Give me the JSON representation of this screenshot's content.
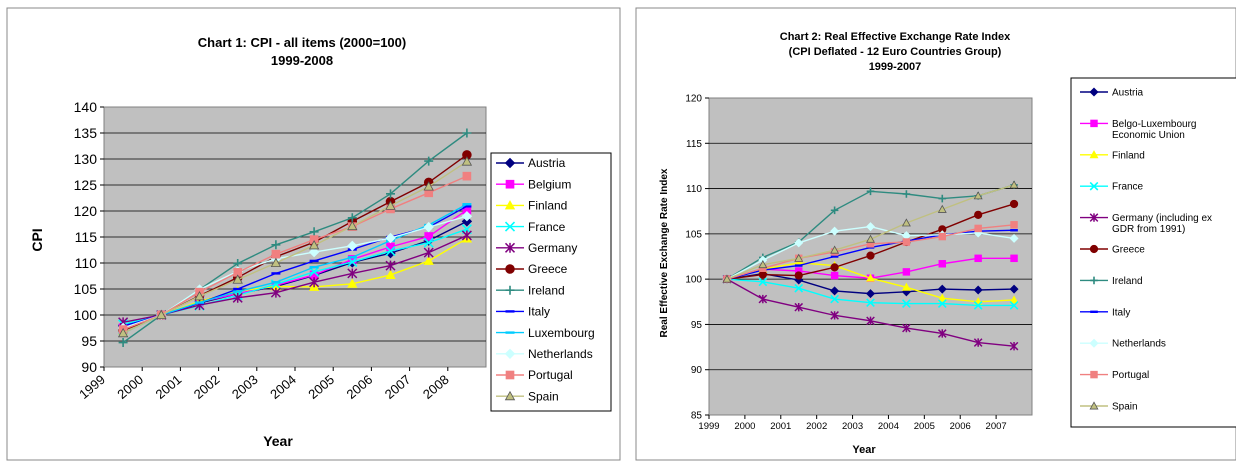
{
  "chart_data": [
    {
      "type": "line",
      "title": "Chart 1:  CPI - all items (2000=100)",
      "subtitle": "1999-2008",
      "xlabel": "Year",
      "ylabel": "CPI",
      "categories": [
        "1999",
        "2000",
        "2001",
        "2002",
        "2003",
        "2004",
        "2005",
        "2006",
        "2007",
        "2008"
      ],
      "ylim": [
        90,
        140
      ],
      "yticks": [
        "90",
        "95",
        "100",
        "105",
        "110",
        "115",
        "120",
        "125",
        "130",
        "135",
        "140"
      ],
      "grid": "horizontal",
      "legend": "right",
      "series": [
        {
          "name": "Austria",
          "color": "#000080",
          "marker": "diamond",
          "values": [
            98.0,
            100,
            102.3,
            104.1,
            105.5,
            107.6,
            110.1,
            111.9,
            114.3,
            118.0
          ]
        },
        {
          "name": "Belgium",
          "color": "#ff00ff",
          "marker": "square",
          "values": [
            97.5,
            100,
            102.5,
            104.1,
            105.7,
            107.7,
            110.7,
            113.1,
            115.1,
            120.2
          ]
        },
        {
          "name": "Finland",
          "color": "#ffff00",
          "marker": "triangle",
          "values": [
            97.0,
            100,
            102.6,
            104.6,
            105.5,
            105.4,
            106.0,
            107.7,
            110.4,
            114.7
          ]
        },
        {
          "name": "France",
          "color": "#00ffff",
          "marker": "x",
          "values": [
            98.2,
            100,
            101.8,
            103.8,
            105.9,
            108.3,
            110.2,
            112.3,
            113.9,
            116.5
          ]
        },
        {
          "name": "Germany",
          "color": "#800080",
          "marker": "star",
          "values": [
            98.6,
            100,
            101.9,
            103.3,
            104.3,
            106.3,
            108.0,
            109.5,
            112.0,
            115.3
          ]
        },
        {
          "name": "Greece",
          "color": "#800000",
          "marker": "circle",
          "values": [
            97.0,
            100,
            103.7,
            107.2,
            111.2,
            114.0,
            118.0,
            121.8,
            125.5,
            130.8
          ]
        },
        {
          "name": "Ireland",
          "color": "#2e8b80",
          "marker": "plus",
          "values": [
            94.7,
            100,
            104.9,
            109.9,
            113.5,
            116.0,
            118.7,
            123.3,
            129.6,
            135.0
          ]
        },
        {
          "name": "Italy",
          "color": "#0000ff",
          "marker": "dash",
          "values": [
            97.8,
            100,
            102.3,
            105.0,
            108.0,
            110.4,
            112.6,
            115.0,
            116.9,
            120.9
          ]
        },
        {
          "name": "Luxembourg",
          "color": "#00ccff",
          "marker": "dash",
          "values": [
            96.5,
            100,
            102.4,
            104.5,
            106.3,
            109.2,
            111.1,
            114.3,
            117.3,
            121.3
          ]
        },
        {
          "name": "Netherlands",
          "color": "#ccffff",
          "marker": "diamond",
          "values": [
            97.5,
            100,
            104.9,
            108.4,
            110.8,
            112.1,
            113.3,
            114.8,
            116.9,
            119.0
          ]
        },
        {
          "name": "Portugal",
          "color": "#f08080",
          "marker": "square",
          "values": [
            97.2,
            100,
            104.4,
            108.2,
            111.7,
            114.5,
            117.0,
            120.4,
            123.5,
            126.7
          ]
        },
        {
          "name": "Spain",
          "color": "#c0c080",
          "marker": "triangle",
          "values": [
            96.5,
            100,
            103.6,
            106.8,
            110.0,
            113.4,
            117.1,
            121.0,
            124.7,
            129.5
          ]
        }
      ]
    },
    {
      "type": "line",
      "title": "Chart 2:  Real Effective Exchange Rate Index",
      "subtitle": "(CPI Deflated - 12 Euro Countries Group)",
      "subtitle2": "1999-2007",
      "xlabel": "Year",
      "ylabel": "Real Effective Exchange Rate Index",
      "categories": [
        "1999",
        "2000",
        "2001",
        "2002",
        "2003",
        "2004",
        "2005",
        "2006",
        "2007"
      ],
      "ylim": [
        85,
        120
      ],
      "yticks": [
        "85",
        "90",
        "95",
        "100",
        "105",
        "110",
        "115",
        "120"
      ],
      "grid": "horizontal",
      "legend": "right",
      "series": [
        {
          "name": "Austria",
          "color": "#000080",
          "marker": "diamond",
          "values": [
            100,
            100.6,
            99.9,
            98.7,
            98.4,
            98.6,
            98.9,
            98.8,
            98.9
          ]
        },
        {
          "name": "Belgo-Luxembourg Economic Union",
          "color": "#ff00ff",
          "marker": "square",
          "values": [
            100,
            101.1,
            100.9,
            100.4,
            100.1,
            100.8,
            101.7,
            102.3,
            102.3
          ]
        },
        {
          "name": "Finland",
          "color": "#ffff00",
          "marker": "triangle",
          "values": [
            100,
            101.1,
            101.8,
            101.5,
            100.1,
            99.1,
            97.9,
            97.5,
            97.7
          ]
        },
        {
          "name": "France",
          "color": "#00ffff",
          "marker": "x",
          "values": [
            100,
            99.7,
            99.0,
            97.8,
            97.4,
            97.3,
            97.3,
            97.1,
            97.1
          ]
        },
        {
          "name": "Germany (including ex GDR from 1991)",
          "color": "#800080",
          "marker": "star",
          "values": [
            100,
            97.8,
            96.9,
            96.0,
            95.4,
            94.6,
            94.0,
            93.0,
            92.6
          ]
        },
        {
          "name": "Greece",
          "color": "#800000",
          "marker": "circle",
          "values": [
            100,
            100.5,
            100.4,
            101.3,
            102.6,
            104.1,
            105.5,
            107.1,
            108.3
          ]
        },
        {
          "name": "Ireland",
          "color": "#2e8b80",
          "marker": "plus",
          "values": [
            100,
            102.4,
            104.1,
            107.6,
            109.7,
            109.4,
            108.9,
            109.2,
            110.4
          ]
        },
        {
          "name": "Italy",
          "color": "#0000ff",
          "marker": "dash",
          "values": [
            100,
            101.0,
            101.5,
            102.5,
            103.5,
            104.2,
            104.9,
            105.3,
            105.4
          ]
        },
        {
          "name": "Netherlands",
          "color": "#ccffff",
          "marker": "diamond",
          "values": [
            100,
            102.1,
            104.0,
            105.3,
            105.8,
            104.8,
            104.9,
            105.1,
            104.5
          ]
        },
        {
          "name": "Portugal",
          "color": "#f08080",
          "marker": "square",
          "values": [
            100,
            101.2,
            102.3,
            103.0,
            103.9,
            104.1,
            104.7,
            105.6,
            106.0
          ]
        },
        {
          "name": "Spain",
          "color": "#c0c080",
          "marker": "triangle",
          "values": [
            100,
            101.6,
            102.3,
            103.2,
            104.4,
            106.2,
            107.7,
            109.2,
            110.4
          ]
        }
      ]
    }
  ]
}
